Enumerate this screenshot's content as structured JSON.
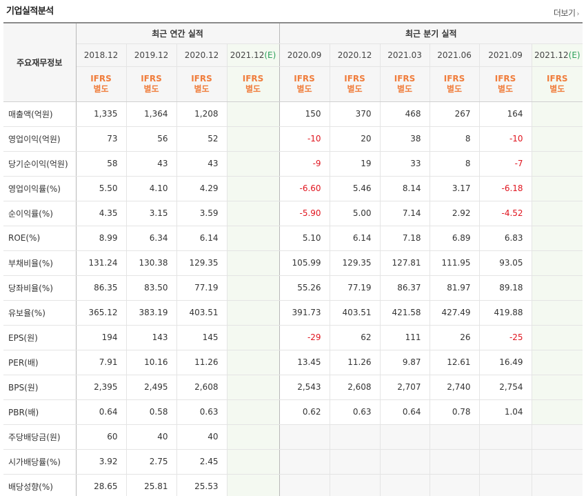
{
  "header": {
    "title": "기업실적분석",
    "more_label": "더보기",
    "more_chevron": "›"
  },
  "table": {
    "row_header_label": "주요재무정보",
    "annual_group_label": "최근 연간 실적",
    "quarter_group_label": "최근 분기 실적",
    "annual_periods": [
      {
        "label": "2018.12",
        "est": ""
      },
      {
        "label": "2019.12",
        "est": ""
      },
      {
        "label": "2020.12",
        "est": ""
      },
      {
        "label": "2021.12",
        "est": "(E)"
      }
    ],
    "quarter_periods": [
      {
        "label": "2020.09",
        "est": ""
      },
      {
        "label": "2020.12",
        "est": ""
      },
      {
        "label": "2021.03",
        "est": ""
      },
      {
        "label": "2021.06",
        "est": ""
      },
      {
        "label": "2021.09",
        "est": ""
      },
      {
        "label": "2021.12",
        "est": "(E)"
      }
    ],
    "standard_line1": "IFRS",
    "standard_line2": "별도",
    "rows": [
      {
        "label": "매출액(억원)",
        "annual": [
          "1,335",
          "1,364",
          "1,208",
          ""
        ],
        "quarter": [
          "150",
          "370",
          "468",
          "267",
          "164",
          ""
        ]
      },
      {
        "label": "영업이익(억원)",
        "annual": [
          "73",
          "56",
          "52",
          ""
        ],
        "quarter": [
          "-10",
          "20",
          "38",
          "8",
          "-10",
          ""
        ]
      },
      {
        "label": "당기순이익(억원)",
        "annual": [
          "58",
          "43",
          "43",
          ""
        ],
        "quarter": [
          "-9",
          "19",
          "33",
          "8",
          "-7",
          ""
        ]
      },
      {
        "label": "영업이익률(%)",
        "annual": [
          "5.50",
          "4.10",
          "4.29",
          ""
        ],
        "quarter": [
          "-6.60",
          "5.46",
          "8.14",
          "3.17",
          "-6.18",
          ""
        ]
      },
      {
        "label": "순이익률(%)",
        "annual": [
          "4.35",
          "3.15",
          "3.59",
          ""
        ],
        "quarter": [
          "-5.90",
          "5.00",
          "7.14",
          "2.92",
          "-4.52",
          ""
        ]
      },
      {
        "label": "ROE(%)",
        "annual": [
          "8.99",
          "6.34",
          "6.14",
          ""
        ],
        "quarter": [
          "5.10",
          "6.14",
          "7.18",
          "6.89",
          "6.83",
          ""
        ]
      },
      {
        "label": "부채비율(%)",
        "annual": [
          "131.24",
          "130.38",
          "129.35",
          ""
        ],
        "quarter": [
          "105.99",
          "129.35",
          "127.81",
          "111.95",
          "93.05",
          ""
        ]
      },
      {
        "label": "당좌비율(%)",
        "annual": [
          "86.35",
          "83.50",
          "77.19",
          ""
        ],
        "quarter": [
          "55.26",
          "77.19",
          "86.37",
          "81.97",
          "89.18",
          ""
        ]
      },
      {
        "label": "유보율(%)",
        "annual": [
          "365.12",
          "383.19",
          "403.51",
          ""
        ],
        "quarter": [
          "391.73",
          "403.51",
          "421.58",
          "427.49",
          "419.88",
          ""
        ]
      },
      {
        "label": "EPS(원)",
        "annual": [
          "194",
          "143",
          "145",
          ""
        ],
        "quarter": [
          "-29",
          "62",
          "111",
          "26",
          "-25",
          ""
        ]
      },
      {
        "label": "PER(배)",
        "annual": [
          "7.91",
          "10.16",
          "11.26",
          ""
        ],
        "quarter": [
          "13.45",
          "11.26",
          "9.87",
          "12.61",
          "16.49",
          ""
        ]
      },
      {
        "label": "BPS(원)",
        "annual": [
          "2,395",
          "2,495",
          "2,608",
          ""
        ],
        "quarter": [
          "2,543",
          "2,608",
          "2,707",
          "2,740",
          "2,754",
          ""
        ]
      },
      {
        "label": "PBR(배)",
        "annual": [
          "0.64",
          "0.58",
          "0.63",
          ""
        ],
        "quarter": [
          "0.62",
          "0.63",
          "0.64",
          "0.78",
          "1.04",
          ""
        ]
      },
      {
        "label": "주당배당금(원)",
        "annual": [
          "60",
          "40",
          "40",
          ""
        ],
        "quarter": [
          "",
          "",
          "",
          "",
          "",
          ""
        ]
      },
      {
        "label": "시가배당률(%)",
        "annual": [
          "3.92",
          "2.75",
          "2.45",
          ""
        ],
        "quarter": [
          "",
          "",
          "",
          "",
          "",
          ""
        ]
      },
      {
        "label": "배당성향(%)",
        "annual": [
          "28.65",
          "25.81",
          "25.53",
          ""
        ],
        "quarter": [
          "",
          "",
          "",
          "",
          "",
          ""
        ]
      }
    ],
    "section_starts": [
      3,
      6,
      9,
      13
    ],
    "grey_quarter_rows": [
      13,
      14,
      15
    ],
    "colors": {
      "negative": "#e0141e",
      "standard": "#f07d3c",
      "estimate": "#2ca05a",
      "estimate_column_bg": "#f4f9f1"
    }
  }
}
